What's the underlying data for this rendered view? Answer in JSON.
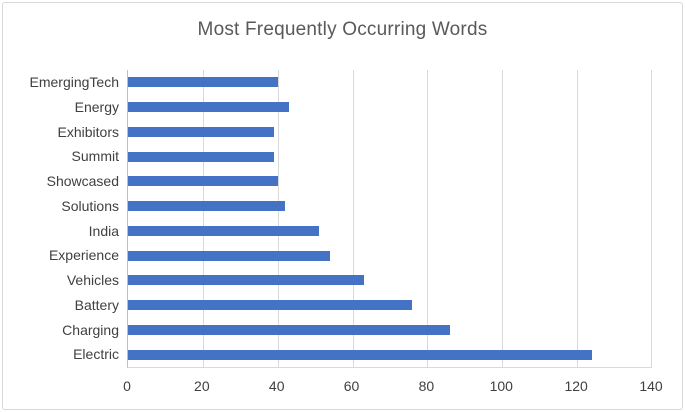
{
  "chart_data": {
    "type": "bar",
    "orientation": "horizontal",
    "title": "Most Frequently Occurring Words",
    "categories": [
      "EmergingTech",
      "Energy",
      "Exhibitors",
      "Summit",
      "Showcased",
      "Solutions",
      "India",
      "Experience",
      "Vehicles",
      "Battery",
      "Charging",
      "Electric"
    ],
    "values": [
      40,
      43,
      39,
      39,
      40,
      42,
      51,
      54,
      63,
      76,
      86,
      124
    ],
    "xlabel": "",
    "ylabel": "",
    "xlim": [
      0,
      140
    ],
    "x_ticks": [
      0,
      20,
      40,
      60,
      80,
      100,
      120,
      140
    ],
    "grid": true,
    "legend": false,
    "bar_color": "#4472C4",
    "title_color": "#595959",
    "label_color": "#404040",
    "gridline_color": "#D9D9D9",
    "axis_line_color": "#BFBFBF"
  }
}
